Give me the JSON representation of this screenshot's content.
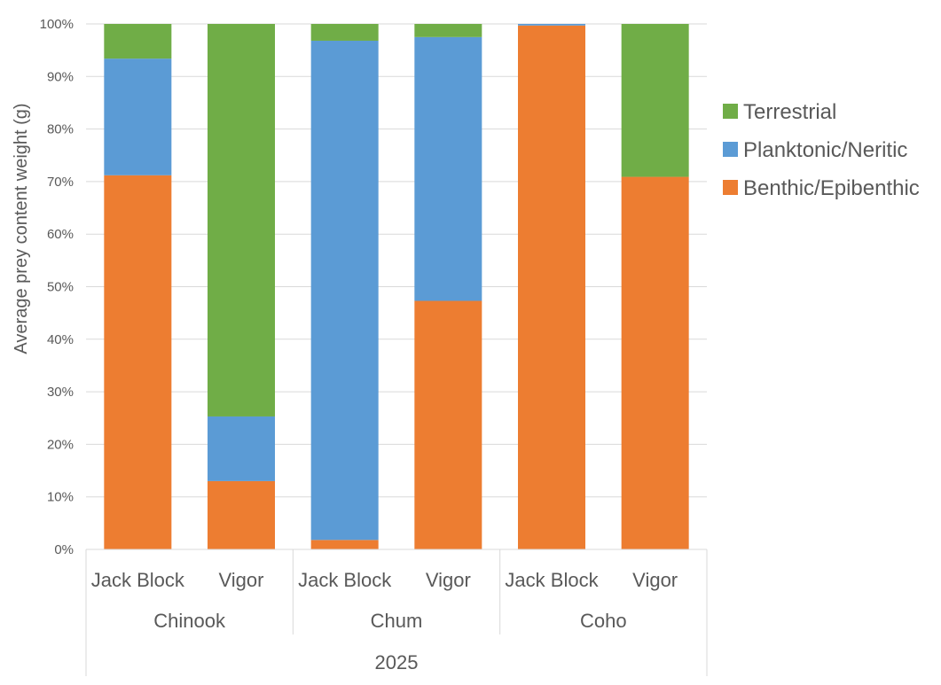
{
  "chart_data": {
    "type": "bar",
    "stacked": true,
    "normalized": true,
    "title": "",
    "xlabel": "",
    "ylabel": "Average prey content weight (g)",
    "ylim": [
      0,
      100
    ],
    "yticks": [
      "0%",
      "10%",
      "20%",
      "30%",
      "40%",
      "50%",
      "60%",
      "70%",
      "80%",
      "90%",
      "100%"
    ],
    "grid": true,
    "legend_position": "right",
    "categories": [
      "Jack Block",
      "Vigor",
      "Jack Block",
      "Vigor",
      "Jack Block",
      "Vigor"
    ],
    "groups": [
      {
        "label": "Chinook",
        "span": [
          0,
          1
        ]
      },
      {
        "label": "Chum",
        "span": [
          2,
          3
        ]
      },
      {
        "label": "Coho",
        "span": [
          4,
          5
        ]
      }
    ],
    "outer_group": "2025",
    "series": [
      {
        "name": "Benthic/Epibenthic",
        "color": "#ED7D31",
        "values": [
          71.2,
          13.0,
          1.8,
          47.3,
          99.7,
          70.9
        ]
      },
      {
        "name": "Planktonic/Neritic",
        "color": "#5B9BD5",
        "values": [
          22.2,
          12.3,
          95.0,
          50.2,
          0.3,
          0.0
        ]
      },
      {
        "name": "Terrestrial",
        "color": "#70AD47",
        "values": [
          6.6,
          74.7,
          3.2,
          2.5,
          0.0,
          29.1
        ]
      }
    ]
  }
}
